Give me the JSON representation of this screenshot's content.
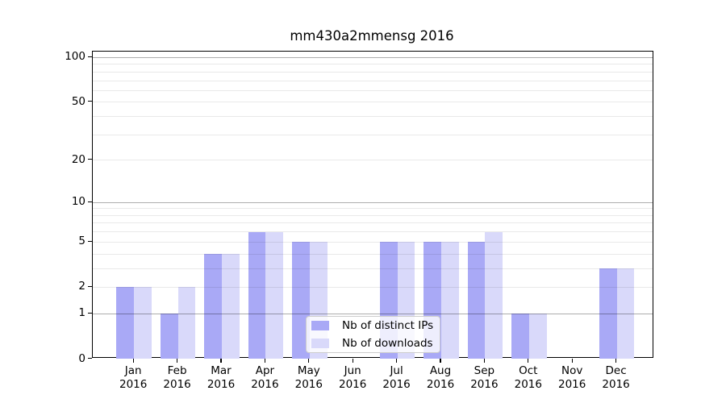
{
  "title": "mm430a2mmensg 2016",
  "chart_data": {
    "type": "bar",
    "title": "mm430a2mmensg 2016",
    "categories": [
      "Jan",
      "Feb",
      "Mar",
      "Apr",
      "May",
      "Jun",
      "Jul",
      "Aug",
      "Sep",
      "Oct",
      "Nov",
      "Dec"
    ],
    "year": "2016",
    "series": [
      {
        "name": "Nb of distinct IPs",
        "color": "#a9a9f6",
        "values": [
          2,
          1,
          4,
          6,
          5,
          0,
          5,
          5,
          5,
          1,
          0,
          3
        ]
      },
      {
        "name": "Nb of downloads",
        "color": "#d9d9fa",
        "values": [
          2,
          2,
          4,
          6,
          5,
          0,
          5,
          5,
          6,
          1,
          0,
          3
        ]
      }
    ],
    "yscale": "log1p",
    "ylim": [
      0,
      110
    ],
    "y_ticks": [
      100,
      50,
      20,
      10,
      5,
      2,
      1,
      0
    ],
    "y_major_gridlines": [
      1,
      10,
      100
    ],
    "y_minor_gridlines": [
      2,
      3,
      4,
      5,
      6,
      7,
      8,
      9,
      20,
      30,
      40,
      50,
      60,
      70,
      80,
      90
    ],
    "grid": true,
    "legend_position": "lower-center-inside",
    "xlabel": "",
    "ylabel": ""
  },
  "colors": {
    "background": "#ffffff",
    "frame": "#000000",
    "grid_major": "rgba(0,0,0,0.32)",
    "grid_minor": "rgba(0,0,0,0.085)",
    "legend_border": "#cccccc",
    "legend_background": "rgba(255,255,255,0.8)"
  }
}
